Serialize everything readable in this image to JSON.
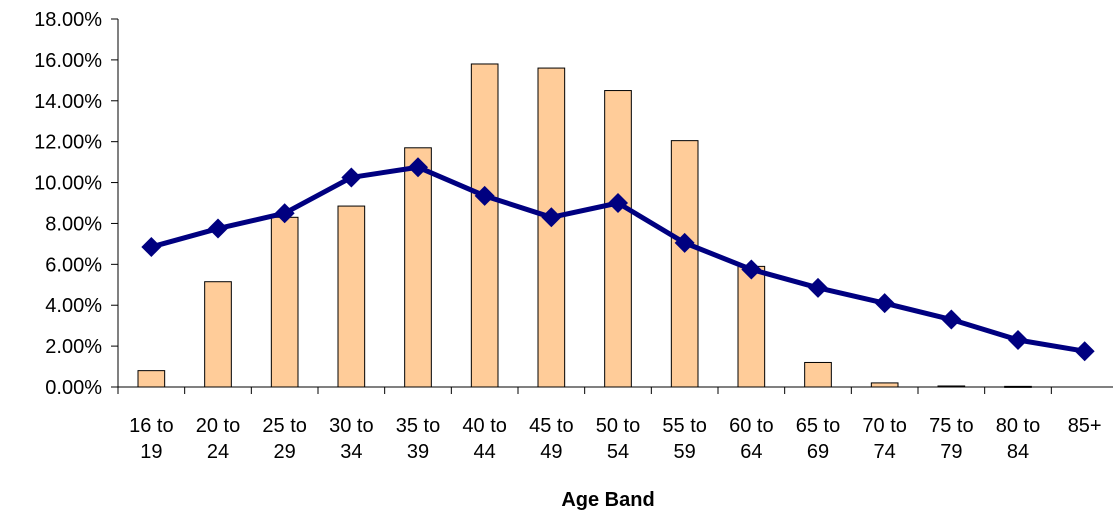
{
  "chart_data": {
    "type": "bar",
    "xlabel": "Age Band",
    "ylabel": "",
    "ylim": [
      0,
      18
    ],
    "y_ticks": [
      "0.00%",
      "2.00%",
      "4.00%",
      "6.00%",
      "8.00%",
      "10.00%",
      "12.00%",
      "14.00%",
      "16.00%",
      "18.00%"
    ],
    "categories": [
      [
        "16 to",
        "19"
      ],
      [
        "20 to",
        "24"
      ],
      [
        "25 to",
        "29"
      ],
      [
        "30 to",
        "34"
      ],
      [
        "35 to",
        "39"
      ],
      [
        "40 to",
        "44"
      ],
      [
        "45 to",
        "49"
      ],
      [
        "50 to",
        "54"
      ],
      [
        "55 to",
        "59"
      ],
      [
        "60 to",
        "64"
      ],
      [
        "65 to",
        "69"
      ],
      [
        "70 to",
        "74"
      ],
      [
        "75 to",
        "79"
      ],
      [
        "80 to",
        "84"
      ],
      [
        "85+",
        ""
      ]
    ],
    "series": [
      {
        "type": "bar",
        "values": [
          0.8,
          5.15,
          8.3,
          8.85,
          11.7,
          15.8,
          15.6,
          14.5,
          12.05,
          5.9,
          1.2,
          0.2,
          0.05,
          0.03,
          0.0
        ]
      },
      {
        "type": "line",
        "values": [
          6.85,
          7.75,
          8.5,
          10.25,
          10.75,
          9.35,
          8.3,
          9.0,
          7.05,
          5.75,
          4.85,
          4.1,
          3.3,
          2.3,
          1.75
        ]
      }
    ],
    "colors": {
      "bar_fill": "#FFCC99",
      "bar_stroke": "#000000",
      "line": "#000080",
      "marker": "#000080",
      "axis": "#000000"
    },
    "grid": false,
    "legend": "none"
  }
}
